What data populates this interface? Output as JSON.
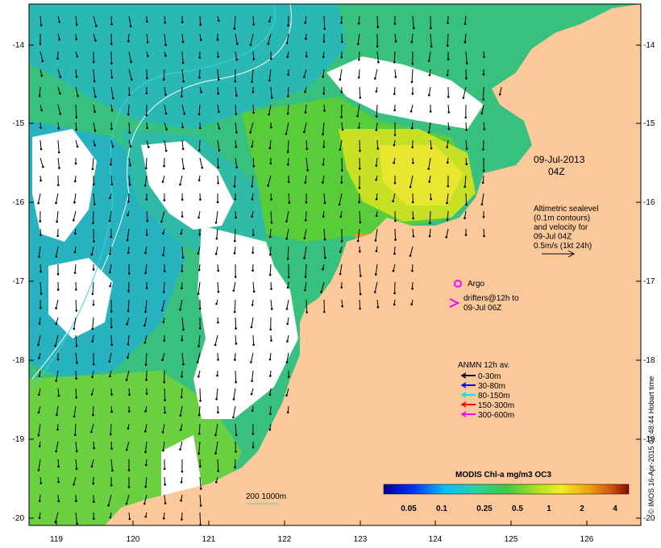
{
  "map": {
    "date_line1": "09-Jul-2013",
    "date_line2": "04Z",
    "altimetry_lines": [
      "Altimetric sealevel",
      "(0.1m contours)",
      "and velocity for",
      "09-Jul 04Z",
      "0.5m/s (1kt 24h)"
    ],
    "argo_label": "Argo",
    "drifters_line1": "drifters@12h to",
    "drifters_line2": "09-Jul 06Z",
    "anmn_title": "ANMN 12h av.",
    "anmn_items": [
      {
        "label": "0-30m",
        "color": "#000000"
      },
      {
        "label": "30-80m",
        "color": "#0000ff"
      },
      {
        "label": "80-150m",
        "color": "#00e5e5"
      },
      {
        "label": "150-300m",
        "color": "#ff0000"
      },
      {
        "label": "300-600m",
        "color": "#ff00ff"
      }
    ],
    "isobath_label": "200  1000m",
    "colorbar_title": "MODIS Chl-a mg/m3 OC3",
    "colorbar_ticks": [
      "0.05",
      "0.1",
      "0.25",
      "0.5",
      "1",
      "2",
      "4"
    ],
    "credit": "© IMOS 16-Apr-2015 07:48:44 Hobart time",
    "lon_ticks": [
      "119",
      "120",
      "121",
      "122",
      "123",
      "124",
      "125",
      "126"
    ],
    "lat_ticks_left": [
      "-14",
      "-15",
      "-16",
      "-17",
      "-18",
      "-19",
      "-20"
    ],
    "lat_ticks_right": [
      "-14",
      "-15",
      "-16",
      "-17",
      "-18",
      "-19",
      "-20"
    ],
    "colors": {
      "land": "#fbc89a",
      "ocean_low": "#22b5b8",
      "ocean_mid": "#3cc47a",
      "ocean_high": "#9bd61f",
      "bloom": "#e3e62a",
      "peak": "#c0701a",
      "clouds": "#ffffff"
    }
  }
}
